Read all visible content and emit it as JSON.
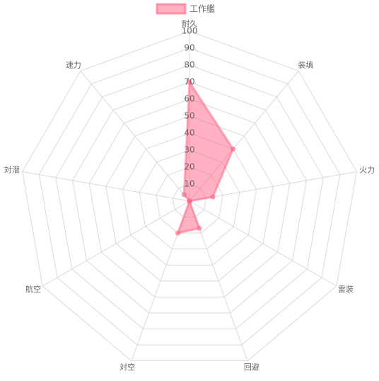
{
  "chart_data": {
    "type": "radar",
    "categories": [
      "耐久",
      "装填",
      "火力",
      "雷装",
      "回避",
      "対空",
      "航空",
      "対潜",
      "速力"
    ],
    "series": [
      {
        "name": "工作艦",
        "color": "#ff6384",
        "values": [
          70,
          40,
          14,
          0,
          17,
          20,
          0,
          0,
          5
        ]
      }
    ],
    "ylim": [
      0,
      100
    ],
    "yticks": [
      10,
      20,
      30,
      40,
      50,
      60,
      70,
      80,
      90,
      100
    ],
    "grid": true,
    "legend": "top"
  }
}
